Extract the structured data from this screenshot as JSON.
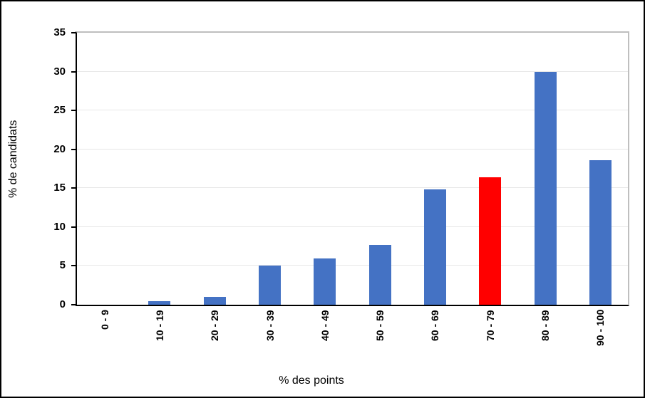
{
  "chart_data": {
    "type": "bar",
    "title": "",
    "categories": [
      "0 - 9",
      "10 - 19",
      "20 - 29",
      "30 - 39",
      "40 - 49",
      "50 - 59",
      "60 - 69",
      "70 - 79",
      "80 - 89",
      "90 - 100"
    ],
    "values": [
      0,
      0.5,
      1,
      5,
      6,
      7.7,
      14.8,
      16.4,
      30,
      18.6
    ],
    "highlight_index": 7,
    "xlabel": "% des points",
    "ylabel": "% de candidats",
    "ylim": [
      0,
      35
    ],
    "yticks": [
      0,
      5,
      10,
      15,
      20,
      25,
      30,
      35
    ],
    "grid": true,
    "legend": "none",
    "colors": {
      "bar": "#4472C4",
      "highlight": "#FF0000",
      "gridline": "#E7E7E7",
      "plot_border": "#BFBFBF",
      "axis": "#000000",
      "frame_border": "#000000",
      "background": "#FFFFFF",
      "text": "#000000"
    }
  }
}
